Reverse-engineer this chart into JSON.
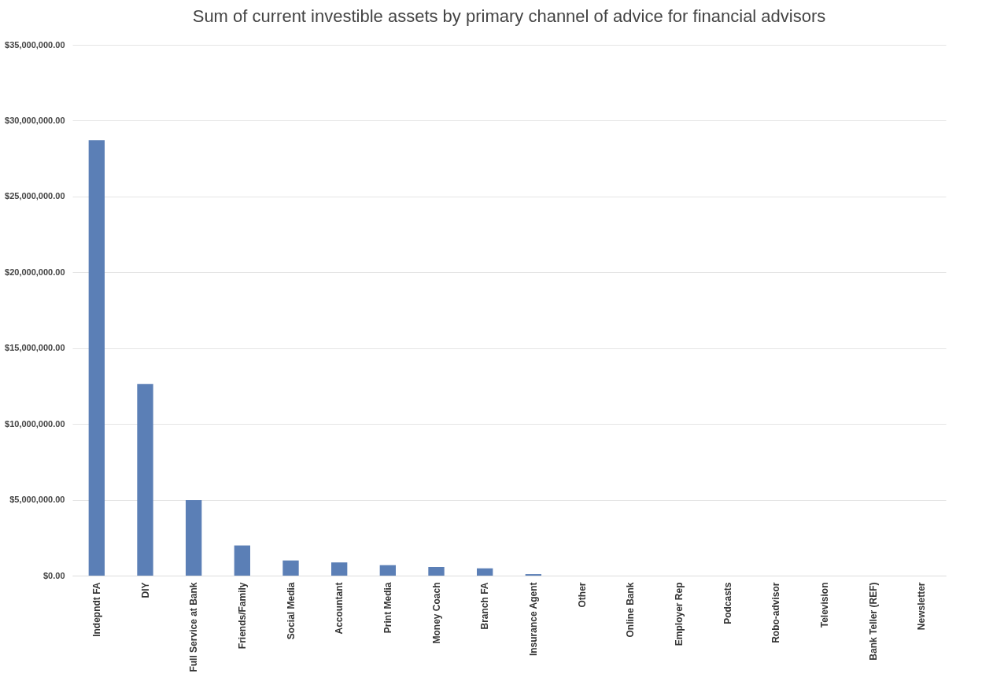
{
  "chart_data": {
    "type": "bar",
    "title": "Sum of current investible assets by primary channel of advice for financial advisors",
    "categories": [
      "Indepndt FA",
      "DIY",
      "Full Service at Bank",
      "Friends/Family",
      "Social Media",
      "Accountant",
      "Print Media",
      "Money Coach",
      "Branch FA",
      "Insurance Agent",
      "Other",
      "Online Bank",
      "Employer Rep",
      "Podcasts",
      "Robo-advisor",
      "Television",
      "Bank Teller (REF)",
      "Newsletter"
    ],
    "values": [
      28710000,
      12640000,
      4980000,
      1990000,
      1000000,
      870000,
      690000,
      570000,
      480000,
      100000,
      0,
      0,
      0,
      0,
      0,
      0,
      0,
      0
    ],
    "color": "#5b7fb6",
    "ylim": [
      0,
      35000000
    ],
    "yticks": [
      {
        "value": 0,
        "label": "$0.00"
      },
      {
        "value": 5000000,
        "label": "$5,000,000.00"
      },
      {
        "value": 10000000,
        "label": "$10,000,000.00"
      },
      {
        "value": 15000000,
        "label": "$15,000,000.00"
      },
      {
        "value": 20000000,
        "label": "$20,000,000.00"
      },
      {
        "value": 25000000,
        "label": "$25,000,000.00"
      },
      {
        "value": 30000000,
        "label": "$30,000,000.00"
      },
      {
        "value": 35000000,
        "label": "$35,000,000.00"
      }
    ],
    "grid": "y"
  }
}
